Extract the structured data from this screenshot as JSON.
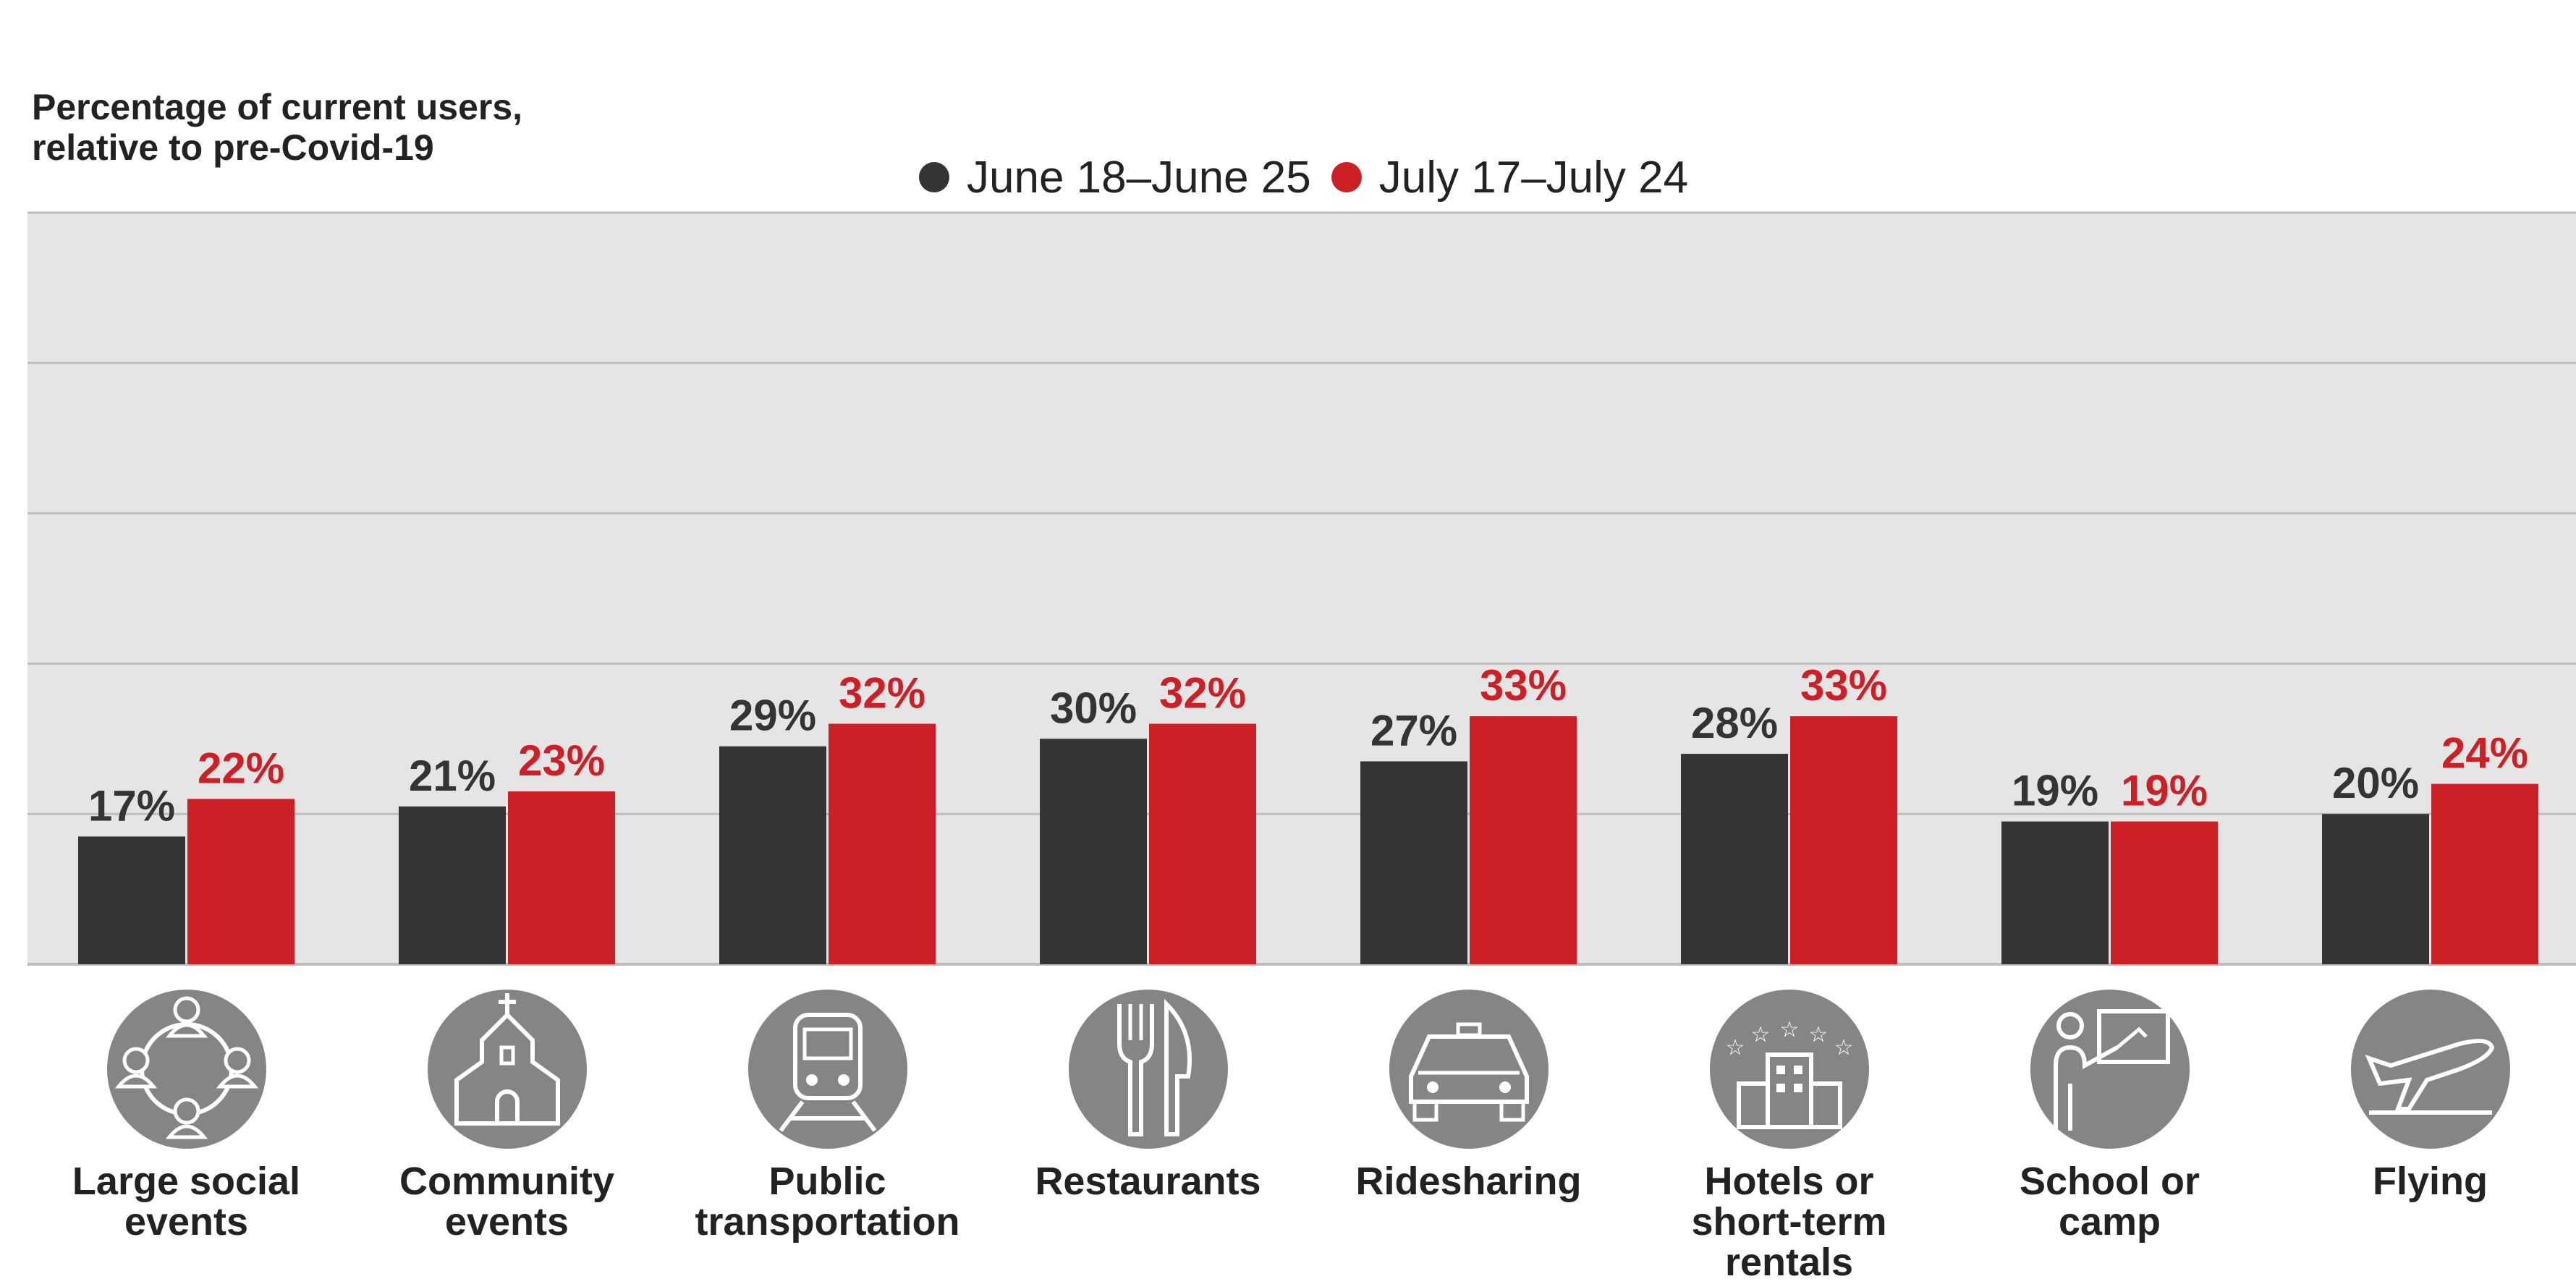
{
  "y_title": "Percentage of current users,\nrelative to pre-Covid-19",
  "colors": {
    "june": "#333435",
    "july": "#cc1f26",
    "plot_bg": "#e5e5e5",
    "grid": "#bdbdbd",
    "icon_bg": "#858585"
  },
  "chart_data": {
    "type": "bar",
    "ylabel": "Percentage of current users, relative to pre-Covid-19",
    "ylim": [
      0,
      100
    ],
    "grid": true,
    "legend": "top-center",
    "categories": [
      "Large social events",
      "Community events",
      "Public transportation",
      "Restaurants",
      "Ridesharing",
      "Hotels or short-term rentals",
      "School or camp",
      "Flying"
    ],
    "series": [
      {
        "name": "June 18–June 25",
        "values": [
          17,
          21,
          29,
          30,
          27,
          28,
          19,
          20
        ],
        "labels": [
          "17%",
          "21%",
          "29%",
          "30%",
          "27%",
          "28%",
          "19%",
          "20%"
        ]
      },
      {
        "name": "July 17–July 24",
        "values": [
          22,
          23,
          32,
          32,
          33,
          33,
          19,
          24
        ],
        "labels": [
          "22%",
          "23%",
          "32%",
          "32%",
          "33%",
          "33%",
          "19%",
          "24%"
        ]
      }
    ]
  },
  "category_display": [
    "Large social\nevents",
    "Community\nevents",
    "Public\ntransportation",
    "Restaurants",
    "Ridesharing",
    "Hotels or\nshort-term\nrentals",
    "School or\ncamp",
    "Flying"
  ],
  "category_icons": [
    "group-icon",
    "church-icon",
    "train-icon",
    "fork-knife-icon",
    "car-icon",
    "hotel-icon",
    "teacher-icon",
    "plane-icon"
  ]
}
